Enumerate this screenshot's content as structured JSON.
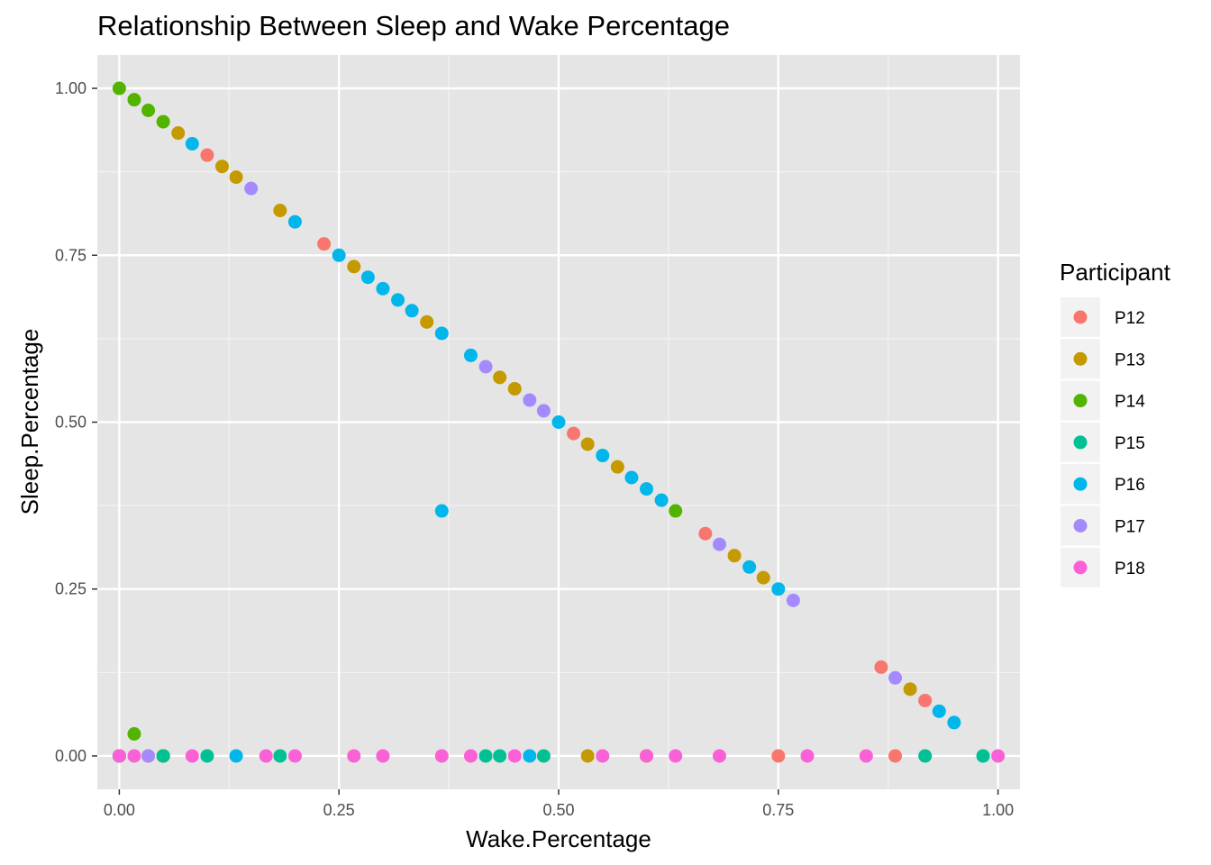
{
  "chart_data": {
    "type": "scatter",
    "title": "Relationship Between Sleep and Wake Percentage",
    "xlabel": "Wake.Percentage",
    "ylabel": "Sleep.Percentage",
    "xlim": [
      -0.025,
      1.025
    ],
    "ylim": [
      -0.05,
      1.05
    ],
    "x_ticks": [
      0,
      0.25,
      0.5,
      0.75,
      1
    ],
    "x_tick_labels": [
      "0.00",
      "0.25",
      "0.50",
      "0.75",
      "1.00"
    ],
    "y_ticks": [
      0,
      0.25,
      0.5,
      0.75,
      1
    ],
    "y_tick_labels": [
      "0.00",
      "0.25",
      "0.50",
      "0.75",
      "1.00"
    ],
    "grid": true,
    "background": "#e5e5e5",
    "legend": {
      "title": "Participant",
      "position": "right"
    },
    "series": [
      {
        "name": "P12",
        "color": "#f8766d",
        "points": [
          [
            0.1,
            0.9
          ],
          [
            0.233,
            0.767
          ],
          [
            0.517,
            0.483
          ],
          [
            0.667,
            0.333
          ],
          [
            0.867,
            0.133
          ],
          [
            0.917,
            0.083
          ],
          [
            0.75,
            0
          ],
          [
            0.883,
            0
          ],
          [
            0,
            0
          ],
          [
            0.05,
            0
          ]
        ]
      },
      {
        "name": "P13",
        "color": "#c49a00",
        "points": [
          [
            0.067,
            0.933
          ],
          [
            0.117,
            0.883
          ],
          [
            0.133,
            0.867
          ],
          [
            0.183,
            0.817
          ],
          [
            0.267,
            0.733
          ],
          [
            0.35,
            0.65
          ],
          [
            0.433,
            0.567
          ],
          [
            0.45,
            0.55
          ],
          [
            0.533,
            0.467
          ],
          [
            0.567,
            0.433
          ],
          [
            0.7,
            0.3
          ],
          [
            0.733,
            0.267
          ],
          [
            0.9,
            0.1
          ],
          [
            0.533,
            0
          ],
          [
            0.6,
            0
          ],
          [
            0.033,
            0
          ],
          [
            0.05,
            0
          ]
        ]
      },
      {
        "name": "P14",
        "color": "#53b400",
        "points": [
          [
            0,
            1
          ],
          [
            0.017,
            0.983
          ],
          [
            0.033,
            0.967
          ],
          [
            0.05,
            0.95
          ],
          [
            0.633,
            0.367
          ],
          [
            0.017,
            0.033
          ],
          [
            0,
            0
          ],
          [
            0.05,
            0
          ]
        ]
      },
      {
        "name": "P15",
        "color": "#00c094",
        "points": [
          [
            0,
            0
          ],
          [
            0.05,
            0
          ],
          [
            0.1,
            0
          ],
          [
            0.183,
            0
          ],
          [
            0.417,
            0
          ],
          [
            0.433,
            0
          ],
          [
            0.483,
            0
          ],
          [
            0.917,
            0
          ],
          [
            0.983,
            0
          ]
        ]
      },
      {
        "name": "P16",
        "color": "#00b6eb",
        "points": [
          [
            0.083,
            0.917
          ],
          [
            0.2,
            0.8
          ],
          [
            0.25,
            0.75
          ],
          [
            0.283,
            0.717
          ],
          [
            0.3,
            0.7
          ],
          [
            0.317,
            0.683
          ],
          [
            0.333,
            0.667
          ],
          [
            0.367,
            0.633
          ],
          [
            0.4,
            0.6
          ],
          [
            0.5,
            0.5
          ],
          [
            0.55,
            0.45
          ],
          [
            0.583,
            0.417
          ],
          [
            0.6,
            0.4
          ],
          [
            0.617,
            0.383
          ],
          [
            0.717,
            0.283
          ],
          [
            0.75,
            0.25
          ],
          [
            0.933,
            0.067
          ],
          [
            0.95,
            0.05
          ],
          [
            0.367,
            0.367
          ],
          [
            0.133,
            0
          ],
          [
            0.467,
            0
          ]
        ]
      },
      {
        "name": "P17",
        "color": "#a58aff",
        "points": [
          [
            0.15,
            0.85
          ],
          [
            0.417,
            0.583
          ],
          [
            0.467,
            0.533
          ],
          [
            0.483,
            0.517
          ],
          [
            0.683,
            0.317
          ],
          [
            0.767,
            0.233
          ],
          [
            0.883,
            0.117
          ],
          [
            0.033,
            0
          ]
        ]
      },
      {
        "name": "P18",
        "color": "#fb61d7",
        "points": [
          [
            0,
            0
          ],
          [
            0.017,
            0
          ],
          [
            0.083,
            0
          ],
          [
            0.167,
            0
          ],
          [
            0.2,
            0
          ],
          [
            0.267,
            0
          ],
          [
            0.3,
            0
          ],
          [
            0.367,
            0
          ],
          [
            0.4,
            0
          ],
          [
            0.45,
            0
          ],
          [
            0.55,
            0
          ],
          [
            0.6,
            0
          ],
          [
            0.633,
            0
          ],
          [
            0.683,
            0
          ],
          [
            0.783,
            0
          ],
          [
            0.85,
            0
          ],
          [
            1,
            0
          ]
        ]
      }
    ]
  }
}
